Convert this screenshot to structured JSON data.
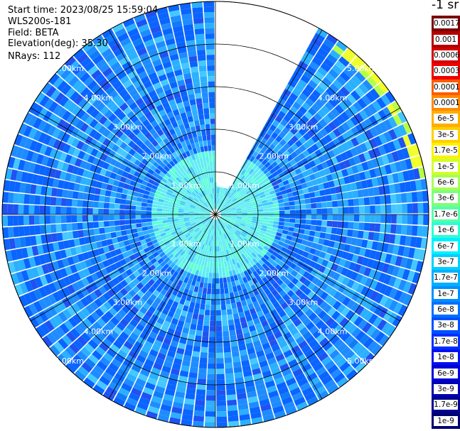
{
  "header": {
    "start_time": "Start time: 2023/08/25 15:59:04",
    "instrument": "WLS200s-181",
    "field": "Field: BETA",
    "elevation": "Elevation(deg): 35.30",
    "nrays": "NRays: 112"
  },
  "colorbar": {
    "unit_label": "-1 sr",
    "levels": [
      "0.0017",
      "0.001",
      "0.0006",
      "0.0003",
      "0.00017",
      "0.0001",
      "6e-5",
      "3e-5",
      "1.7e-5",
      "1e-5",
      "6e-6",
      "3e-6",
      "1.7e-6",
      "1e-6",
      "6e-7",
      "3e-7",
      "1.7e-7",
      "1e-7",
      "6e-8",
      "3e-8",
      "1.7e-8",
      "1e-8",
      "6e-9",
      "3e-9",
      "1.7e-9",
      "1e-9"
    ],
    "colors": [
      "#7a0000",
      "#b30000",
      "#d40000",
      "#f00000",
      "#ff5a00",
      "#ff8a00",
      "#ffae00",
      "#ffd000",
      "#fff000",
      "#d4ff2a",
      "#a6ff55",
      "#7cff7c",
      "#55ffaa",
      "#2affd4",
      "#00f0ff",
      "#00d0ff",
      "#00b0ff",
      "#0090ff",
      "#0070ff",
      "#0050ff",
      "#0030ff",
      "#0010f0",
      "#0000d8",
      "#0000b0",
      "#000090",
      "#000070"
    ]
  },
  "chart_data": {
    "type": "heatmap",
    "projection": "polar (PPI scan)",
    "rays": 112,
    "range_ring_labels": [
      "1.00km",
      "2.00km",
      "3.00km",
      "4.00km",
      "5.00km"
    ],
    "range_rings_km": [
      1,
      2,
      3,
      4,
      5
    ],
    "max_range_km": 5.0,
    "missing_sector_deg": [
      0,
      28
    ],
    "dominant_level_near": "1.7e-7",
    "dominant_level_far": "1e-7",
    "colorscale": "jet, logarithmic"
  }
}
